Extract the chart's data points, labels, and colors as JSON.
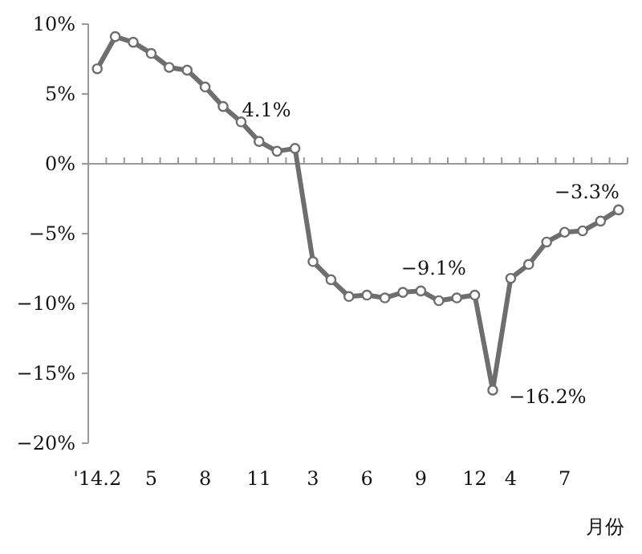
{
  "chart_data": {
    "type": "line",
    "xlabel": "月份",
    "categories": [
      "'14.2",
      null,
      null,
      "5",
      null,
      null,
      "8",
      null,
      null,
      "11",
      null,
      null,
      "3",
      null,
      null,
      "6",
      null,
      null,
      "9",
      null,
      null,
      "12",
      null,
      "4",
      null,
      null,
      "7",
      null,
      null,
      null
    ],
    "series": [
      {
        "color": "#6e6e6e",
        "values": [
          6.8,
          9.1,
          8.7,
          7.9,
          6.9,
          6.7,
          5.5,
          4.1,
          3.0,
          1.6,
          0.9,
          1.1,
          -7.0,
          -8.3,
          -9.5,
          -9.4,
          -9.6,
          -9.2,
          -9.1,
          -9.8,
          -9.6,
          -9.4,
          -16.2,
          -8.2,
          -7.2,
          -5.6,
          -4.9,
          -4.8,
          -4.1,
          -3.3
        ]
      }
    ],
    "ylim": [
      -20,
      10
    ],
    "yticks": [
      {
        "value": -20,
        "label": "−20%"
      },
      {
        "value": -15,
        "label": "−15%"
      },
      {
        "value": -10,
        "label": "−10%"
      },
      {
        "value": -5,
        "label": "−5%"
      },
      {
        "value": 0,
        "label": "0%"
      },
      {
        "value": 5,
        "label": "5%"
      },
      {
        "value": 10,
        "label": "10%"
      }
    ],
    "annotations": [
      "4.1%",
      {
        "text": "−9.1%",
        "x": "9",
        "y": -9.1
      },
      "−16.2%",
      "−3.3%"
    ],
    "marker": "circle",
    "line_style": "solid"
  }
}
